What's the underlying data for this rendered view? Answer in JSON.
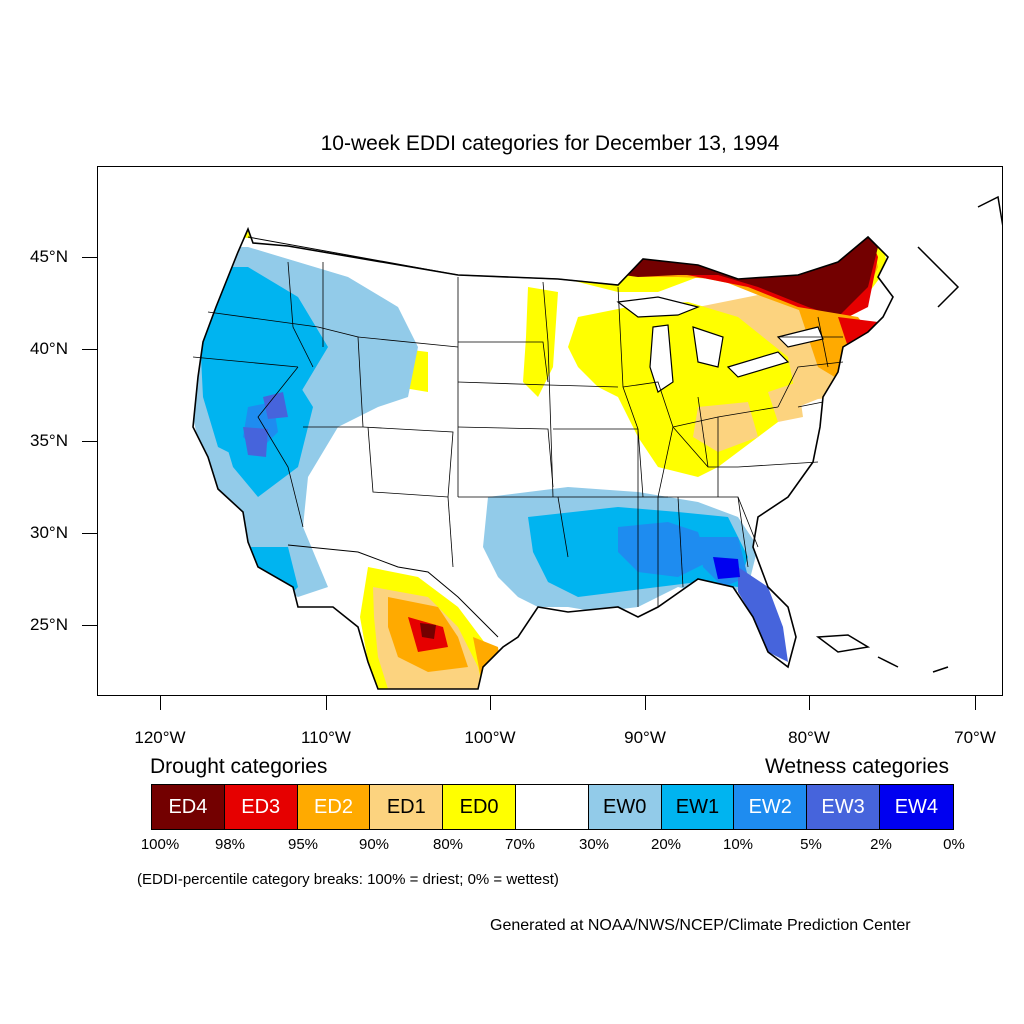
{
  "title": "10-week EDDI categories for December 13, 1994",
  "lat_labels": [
    "45°N",
    "40°N",
    "35°N",
    "30°N",
    "25°N"
  ],
  "lon_labels": [
    "120°W",
    "110°W",
    "100°W",
    "90°W",
    "80°W",
    "70°W"
  ],
  "legend": {
    "drought_heading": "Drought categories",
    "wetness_heading": "Wetness categories",
    "categories": [
      {
        "label": "ED4",
        "color": "#730000",
        "text_color": "#ffffff"
      },
      {
        "label": "ED3",
        "color": "#e60000",
        "text_color": "#ffffff"
      },
      {
        "label": "ED2",
        "color": "#ffaa00",
        "text_color": "#ffffff"
      },
      {
        "label": "ED1",
        "color": "#fcd37f",
        "text_color": "#000000"
      },
      {
        "label": "ED0",
        "color": "#ffff00",
        "text_color": "#000000"
      },
      {
        "label": "",
        "color": "#ffffff",
        "text_color": "#000000"
      },
      {
        "label": "EW0",
        "color": "#92cbe9",
        "text_color": "#000000"
      },
      {
        "label": "EW1",
        "color": "#00b4f0",
        "text_color": "#000000"
      },
      {
        "label": "EW2",
        "color": "#1e8cf0",
        "text_color": "#ffffff"
      },
      {
        "label": "EW3",
        "color": "#4664dc",
        "text_color": "#ffffff"
      },
      {
        "label": "EW4",
        "color": "#0000f0",
        "text_color": "#ffffff"
      }
    ],
    "percent_breaks": [
      "100%",
      "98%",
      "95%",
      "90%",
      "80%",
      "70%",
      "30%",
      "20%",
      "10%",
      "5%",
      "2%",
      "0%"
    ]
  },
  "breaks_note": "(EDDI-percentile category breaks: 100% = driest; 0% = wettest)",
  "credit": "Generated at NOAA/NWS/NCEP/Climate Prediction Center"
}
